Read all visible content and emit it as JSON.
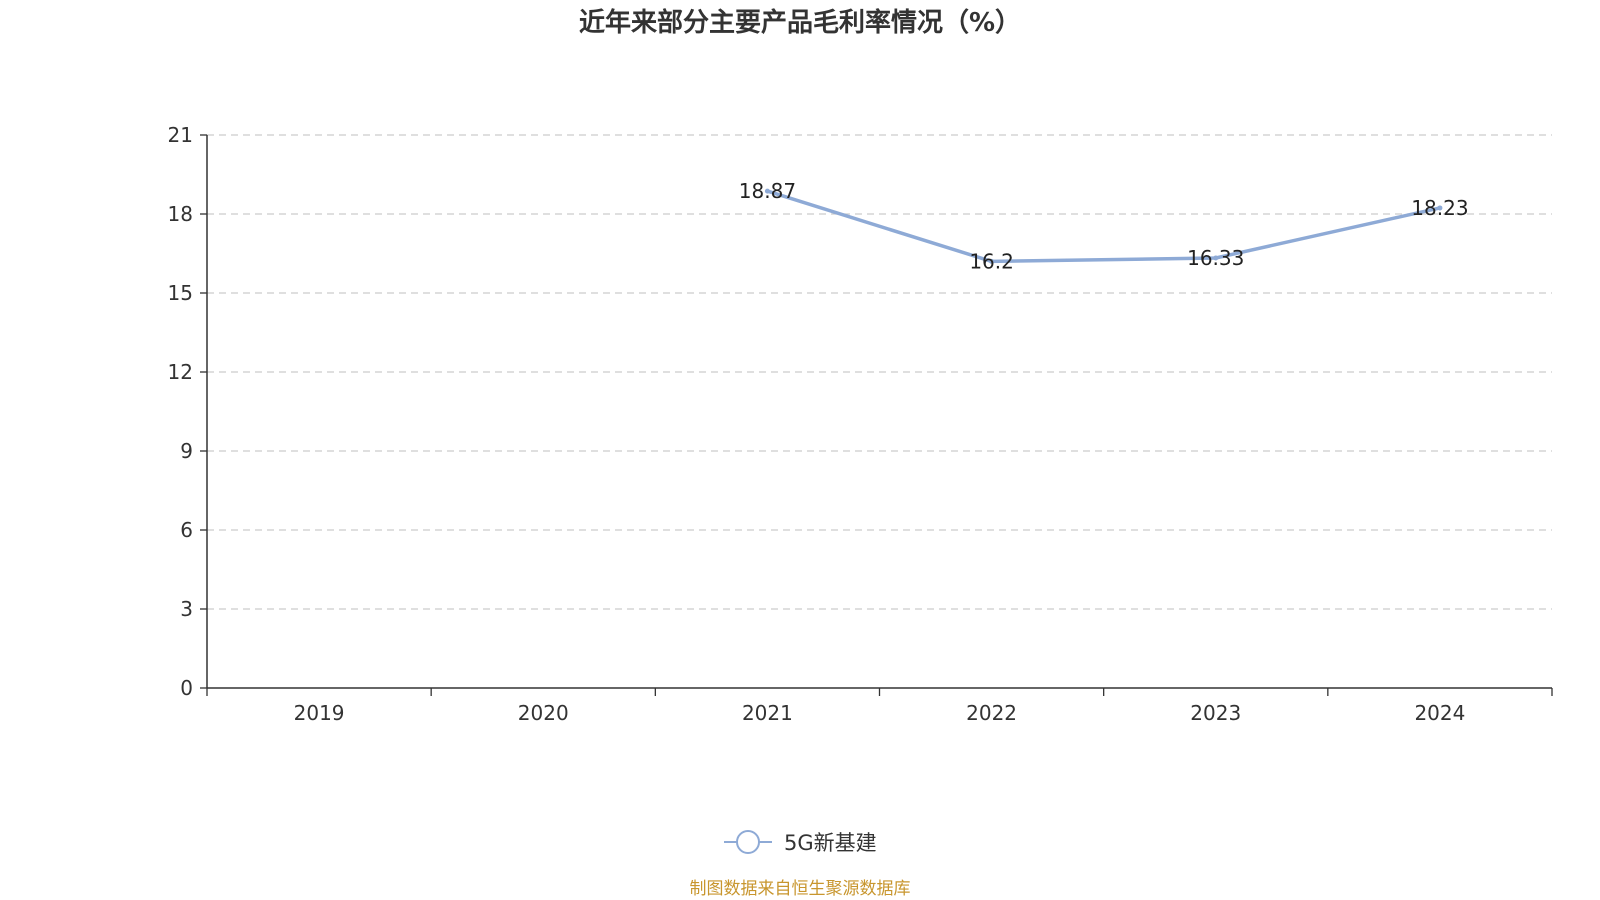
{
  "chart_data": {
    "type": "line",
    "title": "近年来部分主要产品毛利率情况（%）",
    "categories": [
      "2019",
      "2020",
      "2021",
      "2022",
      "2023",
      "2024"
    ],
    "series": [
      {
        "name": "5G新基建",
        "values": [
          null,
          null,
          18.87,
          16.2,
          16.33,
          18.23
        ],
        "labels": [
          "",
          "",
          "18.87",
          "16.2",
          "16.33",
          "18.23"
        ],
        "color": "#8eaad6"
      }
    ],
    "ylim": [
      0,
      21
    ],
    "yticks": [
      "0",
      "3",
      "6",
      "9",
      "12",
      "15",
      "18",
      "21"
    ],
    "grid": true,
    "legend_position": "bottom-center"
  },
  "source_note": "制图数据来自恒生聚源数据库"
}
